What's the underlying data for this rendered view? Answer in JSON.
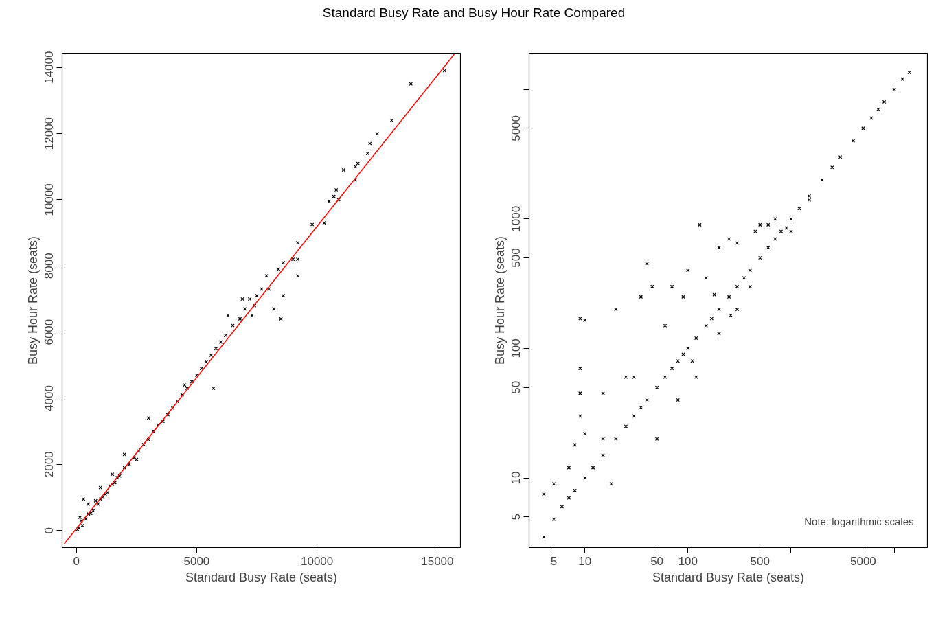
{
  "chart_data": [
    {
      "type": "scatter",
      "title": "Standard Busy Rate and Busy Hour Rate Compared",
      "xlabel": "Standard Busy Rate (seats)",
      "ylabel": "Busy Hour Rate (seats)",
      "marker": "cross",
      "grid": false,
      "xlim": [
        -590,
        15960
      ],
      "ylim": [
        -515,
        14430
      ],
      "xticks": [
        0,
        5000,
        10000,
        15000
      ],
      "yticks": [
        0,
        2000,
        4000,
        6000,
        8000,
        10000,
        12000,
        14000
      ],
      "series": [
        {
          "color": "#000000",
          "x": [
            50,
            100,
            150,
            200,
            300,
            250,
            400,
            500,
            600,
            700,
            800,
            900,
            1000,
            1100,
            1200,
            1300,
            1400,
            1500,
            1600,
            1700,
            1800,
            2000,
            2200,
            2400,
            2600,
            2800,
            3000,
            3200,
            3400,
            3600,
            3800,
            4000,
            4200,
            4400,
            4600,
            4800,
            5000,
            5200,
            5400,
            5600,
            5700,
            5800,
            6000,
            6200,
            6500,
            6800,
            7000,
            7200,
            7400,
            7500,
            7300,
            2000,
            1000,
            500,
            3000,
            4500,
            2500,
            1500,
            6300,
            6900,
            7700,
            8000,
            7900,
            8200,
            8500,
            8600,
            8400,
            8600,
            9200,
            9000,
            9200,
            9200,
            9800,
            10300,
            10500,
            10900,
            10700,
            10800,
            11600,
            11100,
            11600,
            11700,
            12100,
            12200,
            12500,
            13100,
            13900,
            15300
          ],
          "values": [
            30,
            80,
            400,
            300,
            950,
            150,
            350,
            500,
            520,
            600,
            900,
            800,
            950,
            1000,
            1100,
            1150,
            1350,
            1400,
            1450,
            1600,
            1650,
            1900,
            2000,
            2200,
            2400,
            2600,
            2750,
            3000,
            3200,
            3300,
            3500,
            3700,
            3900,
            4100,
            4300,
            4500,
            4700,
            4900,
            5100,
            5300,
            4300,
            5500,
            5700,
            5900,
            6200,
            6400,
            6700,
            7000,
            6800,
            7100,
            6500,
            2300,
            1300,
            800,
            3400,
            4400,
            2150,
            1700,
            6500,
            7000,
            7300,
            7300,
            7700,
            6700,
            6400,
            7100,
            7900,
            8100,
            7700,
            8200,
            8200,
            8700,
            9250,
            9300,
            9950,
            10000,
            10100,
            10300,
            10600,
            10900,
            11000,
            11100,
            11400,
            11700,
            12000,
            12400,
            13500,
            13900
          ]
        },
        {
          "type": "line",
          "color": "#ff0000",
          "marker": "none",
          "x": [
            -500,
            15700
          ],
          "values": [
            -400,
            14400
          ]
        }
      ]
    },
    {
      "type": "scatter",
      "xlabel": "Standard Busy Rate (seats)",
      "ylabel": "Busy Hour Rate (seats)",
      "marker": "cross",
      "grid": false,
      "log": "xy",
      "xlim": [
        2.88,
        21000
      ],
      "ylim": [
        2.9,
        19000
      ],
      "xticks": [
        5,
        10,
        50,
        100,
        500,
        {
          "value": 1000,
          "label": null
        },
        5000,
        {
          "value": 10000,
          "label": null
        }
      ],
      "yticks": [
        5,
        10,
        50,
        100,
        500,
        1000,
        5000,
        {
          "value": 10000,
          "label": null
        }
      ],
      "annotations": [
        {
          "text": "Note: logarithmic scales"
        }
      ],
      "series": [
        {
          "color": "#000000",
          "x": [
            4,
            4,
            5,
            5,
            6,
            7,
            7,
            8,
            8,
            9,
            10,
            9,
            9,
            9,
            10,
            10,
            12,
            15,
            15,
            18,
            20,
            20,
            25,
            30,
            30,
            35,
            35,
            40,
            40,
            45,
            50,
            50,
            60,
            60,
            70,
            70,
            80,
            80,
            90,
            90,
            100,
            100,
            110,
            120,
            130,
            150,
            150,
            170,
            200,
            200,
            200,
            250,
            250,
            300,
            300,
            350,
            400,
            400,
            450,
            500,
            500,
            600,
            700,
            700,
            800,
            900,
            1000,
            1200,
            1500,
            1500,
            2000,
            2500,
            3000,
            4000,
            5000,
            6000,
            7000,
            8000,
            10000,
            12000,
            14000,
            260,
            180,
            120,
            25,
            15,
            300,
            600,
            1000
          ],
          "values": [
            3.5,
            7.5,
            4.8,
            9,
            6,
            12,
            7,
            8,
            18,
            170,
            165,
            70,
            45,
            30,
            10,
            22,
            12,
            15,
            45,
            9,
            20,
            200,
            25,
            30,
            60,
            35,
            250,
            450,
            40,
            300,
            50,
            20,
            60,
            150,
            70,
            300,
            80,
            40,
            90,
            250,
            100,
            400,
            80,
            120,
            900,
            150,
            350,
            170,
            200,
            600,
            130,
            250,
            700,
            300,
            650,
            350,
            400,
            300,
            800,
            500,
            900,
            600,
            700,
            1000,
            800,
            850,
            1000,
            1200,
            1500,
            1400,
            2000,
            2500,
            3000,
            4000,
            5000,
            6000,
            7000,
            8000,
            10000,
            12000,
            13500,
            180,
            260,
            60,
            60,
            20,
            200,
            900,
            800
          ]
        }
      ]
    }
  ]
}
